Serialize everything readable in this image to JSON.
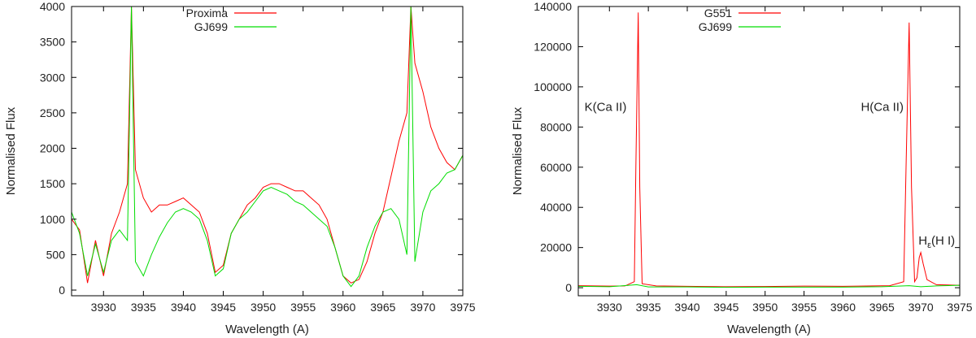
{
  "chart_data": [
    {
      "type": "line",
      "xlabel": "Wavelength (A)",
      "ylabel": "Normalised Flux",
      "xlim": [
        3926,
        3975
      ],
      "ylim": [
        -80,
        4000
      ],
      "xticks": [
        3930,
        3935,
        3940,
        3945,
        3950,
        3955,
        3960,
        3965,
        3970,
        3975
      ],
      "xtick_labels": [
        "3930",
        "3935",
        "3940",
        "3945",
        "3950",
        "3955",
        "3960",
        "3965",
        "3970",
        "3975"
      ],
      "yticks": [
        0,
        500,
        1000,
        1500,
        2000,
        2500,
        3000,
        3500,
        4000
      ],
      "ytick_labels": [
        "0",
        "500",
        "1000",
        "1500",
        "2000",
        "2500",
        "3000",
        "3500",
        "4000"
      ],
      "legend": "top-center",
      "grid": false,
      "series": [
        {
          "name": "Proxima",
          "color": "#ff0000",
          "x": [
            3926,
            3927,
            3928,
            3929,
            3930,
            3931,
            3932,
            3933,
            3933.5,
            3934,
            3935,
            3936,
            3937,
            3938,
            3939,
            3940,
            3941,
            3942,
            3943,
            3944,
            3945,
            3946,
            3947,
            3948,
            3949,
            3950,
            3951,
            3952,
            3953,
            3954,
            3955,
            3956,
            3957,
            3958,
            3959,
            3960,
            3961,
            3962,
            3963,
            3964,
            3965,
            3966,
            3967,
            3968,
            3968.5,
            3969,
            3970,
            3971,
            3972,
            3973,
            3974,
            3975
          ],
          "y": [
            1000,
            850,
            100,
            700,
            200,
            800,
            1100,
            1500,
            4000,
            1700,
            1300,
            1100,
            1200,
            1200,
            1250,
            1300,
            1200,
            1100,
            800,
            250,
            350,
            800,
            1000,
            1200,
            1300,
            1450,
            1500,
            1500,
            1450,
            1400,
            1400,
            1300,
            1200,
            1000,
            600,
            200,
            100,
            150,
            400,
            800,
            1100,
            1600,
            2100,
            2500,
            4000,
            3200,
            2800,
            2300,
            2000,
            1800,
            1700,
            1900
          ]
        },
        {
          "name": "GJ699",
          "color": "#00dd00",
          "x": [
            3926,
            3927,
            3928,
            3929,
            3930,
            3931,
            3932,
            3933,
            3933.5,
            3934,
            3935,
            3936,
            3937,
            3938,
            3939,
            3940,
            3941,
            3942,
            3943,
            3944,
            3945,
            3946,
            3947,
            3948,
            3949,
            3950,
            3951,
            3952,
            3953,
            3954,
            3955,
            3956,
            3957,
            3958,
            3959,
            3960,
            3961,
            3962,
            3963,
            3964,
            3965,
            3966,
            3967,
            3968,
            3968.5,
            3969,
            3970,
            3971,
            3972,
            3973,
            3974,
            3975
          ],
          "y": [
            1100,
            800,
            200,
            650,
            250,
            700,
            850,
            700,
            4000,
            400,
            200,
            500,
            750,
            950,
            1100,
            1150,
            1100,
            1000,
            700,
            200,
            300,
            800,
            1000,
            1100,
            1250,
            1400,
            1450,
            1400,
            1350,
            1250,
            1200,
            1100,
            1000,
            900,
            600,
            200,
            50,
            200,
            600,
            900,
            1100,
            1150,
            1000,
            500,
            4000,
            400,
            1100,
            1400,
            1500,
            1650,
            1700,
            1900
          ]
        }
      ]
    },
    {
      "type": "line",
      "xlabel": "Wavelength (A)",
      "ylabel": "Normalised Flux",
      "xlim": [
        3926,
        3975
      ],
      "ylim": [
        -4000,
        140000
      ],
      "xticks": [
        3930,
        3935,
        3940,
        3945,
        3950,
        3955,
        3960,
        3965,
        3970,
        3975
      ],
      "xtick_labels": [
        "3930",
        "3935",
        "3940",
        "3945",
        "3950",
        "3955",
        "3960",
        "3965",
        "3970",
        "3975"
      ],
      "yticks": [
        0,
        20000,
        40000,
        60000,
        80000,
        100000,
        120000,
        140000
      ],
      "ytick_labels": [
        "0",
        "20000",
        "40000",
        "60000",
        "80000",
        "100000",
        "120000",
        "140000"
      ],
      "legend": "top-center",
      "grid": false,
      "annotations": [
        {
          "text": "K(Ca II)",
          "x": 3926.8,
          "y": 88000
        },
        {
          "text": "H(Ca II)",
          "x": 3962.3,
          "y": 88000
        },
        {
          "text": "H",
          "sub": "ε",
          "rest": "(H I)",
          "x": 3969.7,
          "y": 21500
        }
      ],
      "series": [
        {
          "name": "G551",
          "color": "#ff0000",
          "x": [
            3926,
            3928,
            3930,
            3932,
            3933.2,
            3933.4,
            3933.7,
            3933.9,
            3934.2,
            3936,
            3940,
            3945,
            3950,
            3955,
            3960,
            3964,
            3966,
            3967.8,
            3968.1,
            3968.5,
            3968.8,
            3969.2,
            3969.5,
            3969.8,
            3970,
            3970.3,
            3970.8,
            3972,
            3975
          ],
          "y": [
            1000,
            900,
            800,
            900,
            3000,
            60000,
            137000,
            50000,
            2000,
            900,
            700,
            500,
            600,
            800,
            700,
            900,
            1000,
            3000,
            60000,
            132000,
            50000,
            3000,
            5000,
            15000,
            17500,
            12000,
            4000,
            1500,
            1200
          ]
        },
        {
          "name": "GJ699",
          "color": "#00dd00",
          "x": [
            3926,
            3930,
            3933.5,
            3935,
            3940,
            3945,
            3950,
            3955,
            3960,
            3965,
            3968.5,
            3970,
            3972,
            3975
          ],
          "y": [
            700,
            500,
            1500,
            400,
            400,
            200,
            300,
            300,
            300,
            500,
            1000,
            500,
            900,
            1200
          ]
        }
      ]
    }
  ]
}
